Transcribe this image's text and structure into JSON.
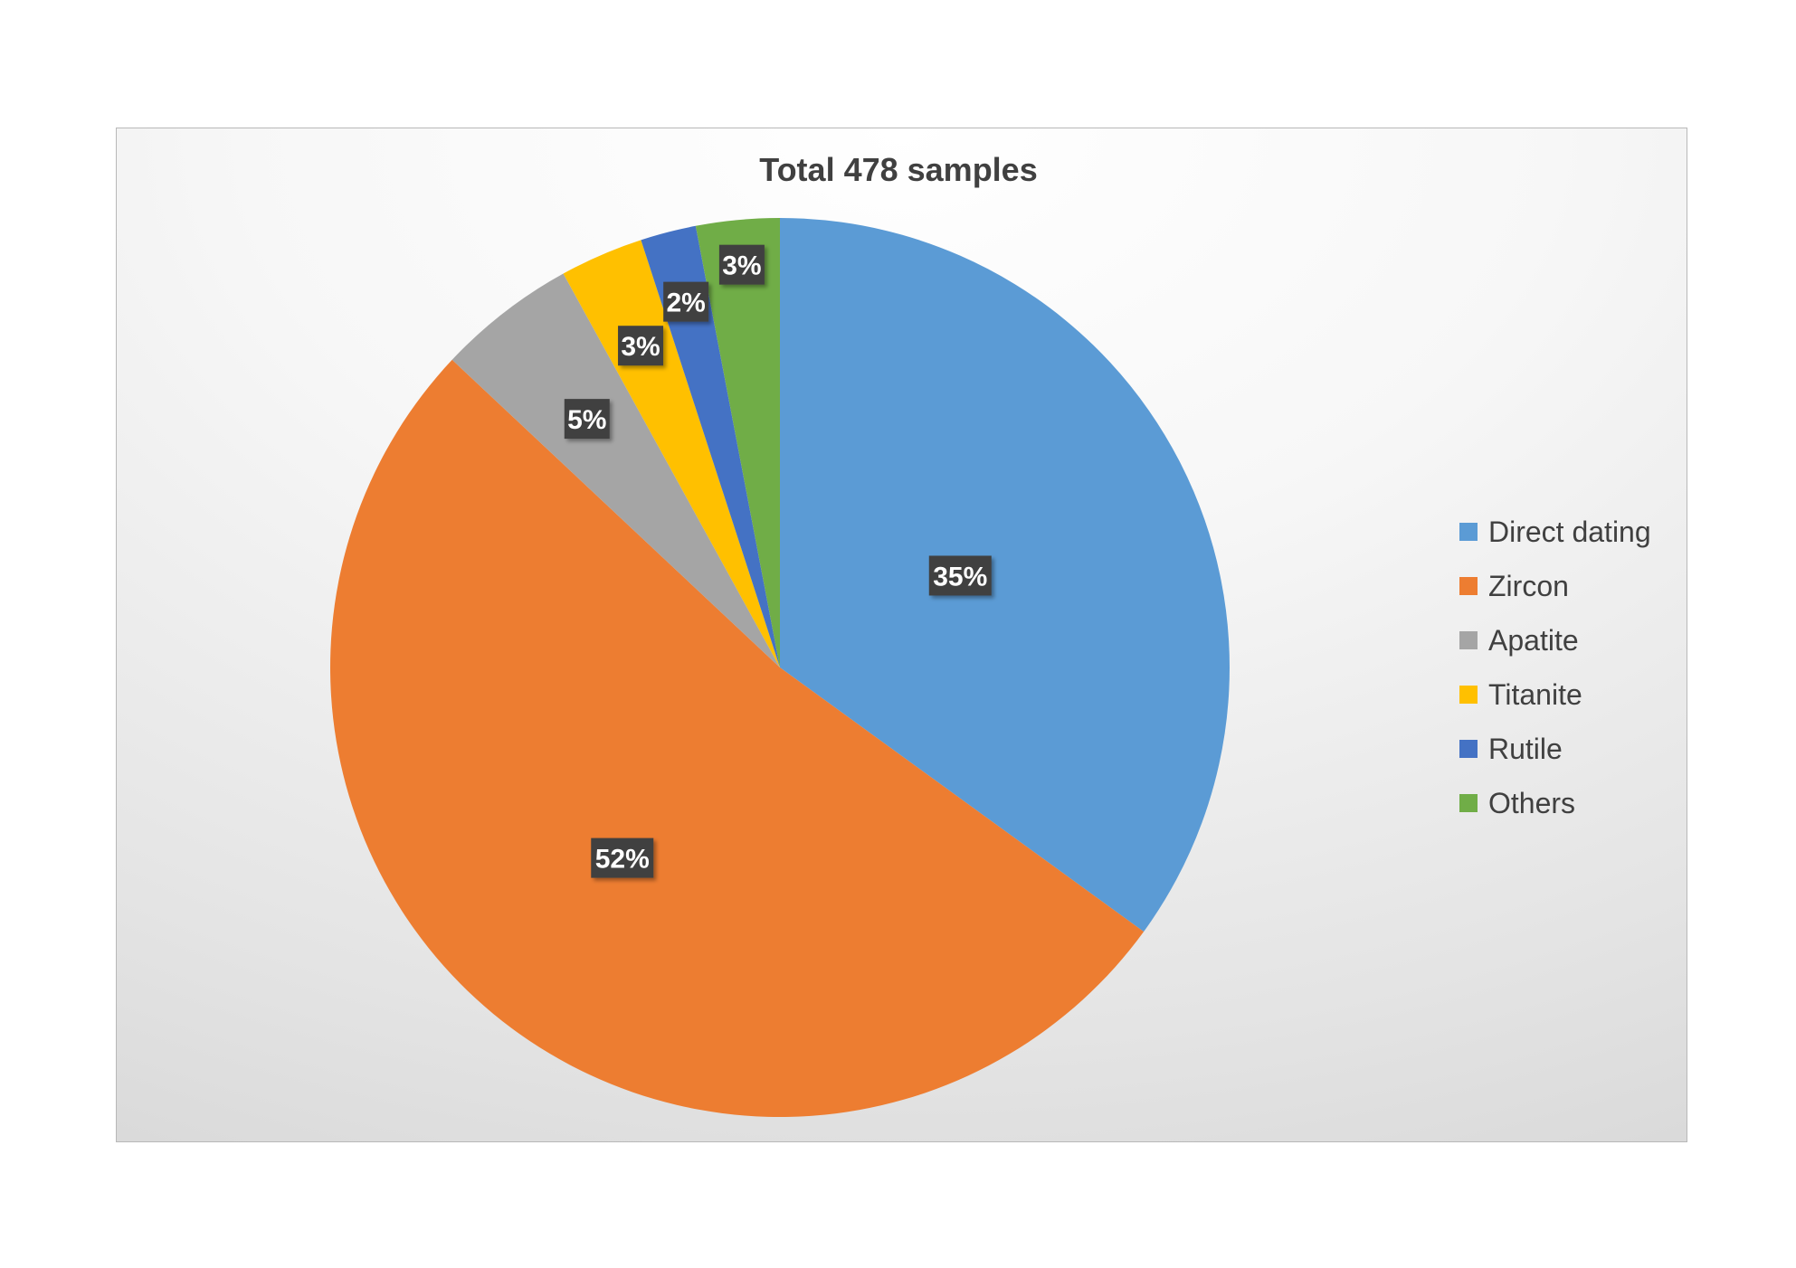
{
  "chart_data": {
    "type": "pie",
    "title": "Total 478 samples",
    "categories": [
      "Direct dating",
      "Zircon",
      "Apatite",
      "Titanite",
      "Rutile",
      "Others"
    ],
    "values": [
      35,
      52,
      5,
      3,
      2,
      3
    ],
    "value_labels": [
      "35%",
      "52%",
      "5%",
      "3%",
      "2%",
      "3%"
    ],
    "colors": [
      "#5B9BD5",
      "#ED7D31",
      "#A5A5A5",
      "#FFC000",
      "#4472C4",
      "#70AD47"
    ],
    "start_angle": "12 o'clock",
    "direction": "clockwise",
    "legend_position": "right",
    "data_label_style": "dark boxes with white text"
  }
}
